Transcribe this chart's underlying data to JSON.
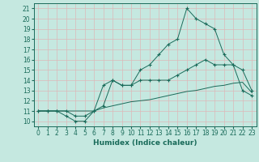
{
  "xlabel": "Humidex (Indice chaleur)",
  "bg_color": "#c5e8e0",
  "grid_color": "#ddb8b8",
  "line_color": "#1a6b5a",
  "xlim": [
    -0.5,
    23.5
  ],
  "ylim": [
    9.5,
    21.5
  ],
  "yticks": [
    10,
    11,
    12,
    13,
    14,
    15,
    16,
    17,
    18,
    19,
    20,
    21
  ],
  "xticks": [
    0,
    1,
    2,
    3,
    4,
    5,
    6,
    7,
    8,
    9,
    10,
    11,
    12,
    13,
    14,
    15,
    16,
    17,
    18,
    19,
    20,
    21,
    22,
    23
  ],
  "line1_x": [
    0,
    1,
    2,
    3,
    4,
    5,
    6,
    7,
    8,
    9,
    10,
    11,
    12,
    13,
    14,
    15,
    16,
    17,
    18,
    19,
    20,
    21,
    22,
    23
  ],
  "line1_y": [
    11,
    11,
    11,
    11,
    10.5,
    10.5,
    11,
    11.5,
    14,
    13.5,
    13.5,
    15,
    15.5,
    16.5,
    17.5,
    18,
    21,
    20,
    19.5,
    19,
    16.5,
    15.5,
    15,
    13
  ],
  "line2_x": [
    0,
    1,
    2,
    3,
    4,
    5,
    6,
    7,
    8,
    9,
    10,
    11,
    12,
    13,
    14,
    15,
    16,
    17,
    18,
    19,
    20,
    21,
    22,
    23
  ],
  "line2_y": [
    11,
    11,
    11,
    10.5,
    10,
    10,
    11,
    13.5,
    14,
    13.5,
    13.5,
    14,
    14,
    14,
    14,
    14.5,
    15,
    15.5,
    16,
    15.5,
    15.5,
    15.5,
    13,
    12.5
  ],
  "line3_x": [
    0,
    1,
    2,
    3,
    4,
    5,
    6,
    7,
    8,
    9,
    10,
    11,
    12,
    13,
    14,
    15,
    16,
    17,
    18,
    19,
    20,
    21,
    22,
    23
  ],
  "line3_y": [
    11,
    11,
    11,
    11,
    11,
    11,
    11,
    11.3,
    11.5,
    11.7,
    11.9,
    12,
    12.1,
    12.3,
    12.5,
    12.7,
    12.9,
    13,
    13.2,
    13.4,
    13.5,
    13.7,
    13.8,
    12.8
  ],
  "tick_fontsize": 5.5,
  "xlabel_fontsize": 6.5
}
